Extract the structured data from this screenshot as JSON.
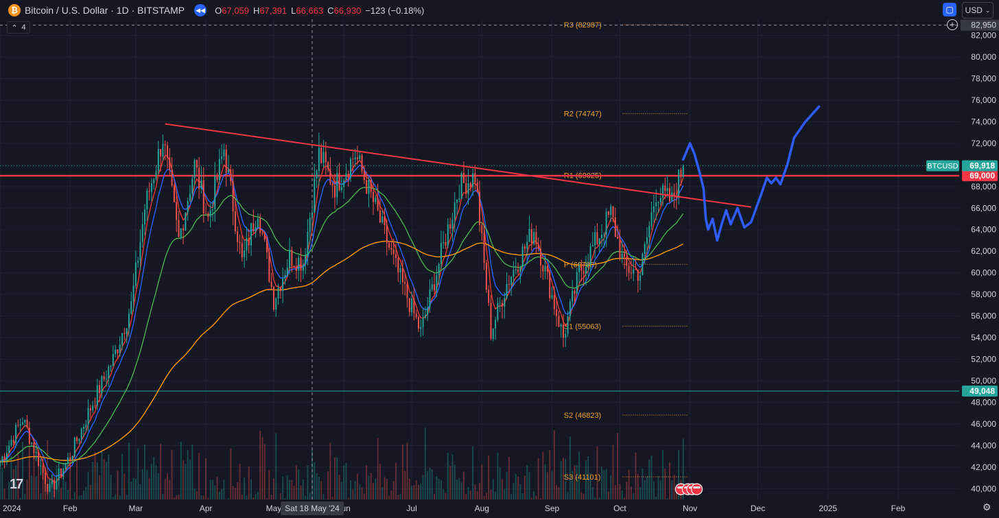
{
  "header": {
    "logo_glyph": "₿",
    "title": "Bitcoin / U.S. Dollar · 1D · BITSTAMP",
    "open_label": "O",
    "open": "67,059",
    "high_label": "H",
    "high": "67,391",
    "low_label": "L",
    "low": "66,663",
    "close_label": "C",
    "close": "66,930",
    "change": "−123 (−0.18%)",
    "currency": "USD",
    "indicator_count": "4"
  },
  "colors": {
    "background": "#151823",
    "up": "#26a69a",
    "down": "#ef5350",
    "resistance": "#f23645",
    "ema_fast": "#e53935",
    "ema_mid": "#2962ff",
    "sma_green": "#4caf50",
    "sma_orange": "#ff9800",
    "drawing": "#2f5bff",
    "pivot": "#f0a030"
  },
  "chart_data": {
    "type": "candlestick",
    "symbol": "BTCUSD",
    "interval": "1D",
    "ylim": [
      39000,
      83500
    ],
    "y_ticks": [
      40000,
      42000,
      44000,
      46000,
      48000,
      50000,
      52000,
      54000,
      56000,
      58000,
      60000,
      62000,
      64000,
      66000,
      68000,
      70000,
      72000,
      74000,
      76000,
      78000,
      80000,
      82000
    ],
    "y_tick_labels": [
      "40,000",
      "42,000",
      "44,000",
      "46,000",
      "48,000",
      "50,000",
      "52,000",
      "54,000",
      "56,000",
      "58,000",
      "60,000",
      "62,000",
      "64,000",
      "66,000",
      "68,000",
      "70,000",
      "72,000",
      "74,000",
      "76,000",
      "78,000",
      "80,000",
      "82,000"
    ],
    "x_axis_start": "2024-01-01",
    "x_axis_end": "2025-02-28",
    "x_tick_labels": [
      {
        "date": "2024-01-01",
        "label": "2024"
      },
      {
        "date": "2024-02-01",
        "label": "Feb"
      },
      {
        "date": "2024-03-01",
        "label": "Mar"
      },
      {
        "date": "2024-04-01",
        "label": "Apr"
      },
      {
        "date": "2024-05-01",
        "label": "May"
      },
      {
        "date": "2024-06-01",
        "label": "Jun"
      },
      {
        "date": "2024-07-01",
        "label": "Jul"
      },
      {
        "date": "2024-08-01",
        "label": "Aug"
      },
      {
        "date": "2024-09-01",
        "label": "Sep"
      },
      {
        "date": "2024-10-01",
        "label": "Oct"
      },
      {
        "date": "2024-11-01",
        "label": "Nov"
      },
      {
        "date": "2024-12-01",
        "label": "Dec"
      },
      {
        "date": "2025-01-01",
        "label": "2025"
      },
      {
        "date": "2025-02-01",
        "label": "Feb"
      }
    ],
    "crosshair": {
      "date": "2024-05-18",
      "label": "Sat 18 May '24",
      "price_label": "82,950",
      "price": 82950
    },
    "price_waypoints": [
      {
        "date": "2024-01-01",
        "price": 42500
      },
      {
        "date": "2024-01-11",
        "price": 46500
      },
      {
        "date": "2024-01-23",
        "price": 39800
      },
      {
        "date": "2024-02-01",
        "price": 43000
      },
      {
        "date": "2024-02-10",
        "price": 47500
      },
      {
        "date": "2024-02-20",
        "price": 52000
      },
      {
        "date": "2024-02-28",
        "price": 57000
      },
      {
        "date": "2024-03-05",
        "price": 66000
      },
      {
        "date": "2024-03-13",
        "price": 72500
      },
      {
        "date": "2024-03-20",
        "price": 63000
      },
      {
        "date": "2024-03-27",
        "price": 70000
      },
      {
        "date": "2024-04-02",
        "price": 65000
      },
      {
        "date": "2024-04-09",
        "price": 71500
      },
      {
        "date": "2024-04-17",
        "price": 61000
      },
      {
        "date": "2024-04-24",
        "price": 66000
      },
      {
        "date": "2024-05-01",
        "price": 57500
      },
      {
        "date": "2024-05-08",
        "price": 61500
      },
      {
        "date": "2024-05-14",
        "price": 61000
      },
      {
        "date": "2024-05-21",
        "price": 71000
      },
      {
        "date": "2024-05-28",
        "price": 68000
      },
      {
        "date": "2024-06-06",
        "price": 71000
      },
      {
        "date": "2024-06-15",
        "price": 66000
      },
      {
        "date": "2024-06-24",
        "price": 60500
      },
      {
        "date": "2024-07-05",
        "price": 54500
      },
      {
        "date": "2024-07-15",
        "price": 62500
      },
      {
        "date": "2024-07-22",
        "price": 68000
      },
      {
        "date": "2024-07-29",
        "price": 69000
      },
      {
        "date": "2024-08-05",
        "price": 54500
      },
      {
        "date": "2024-08-12",
        "price": 59000
      },
      {
        "date": "2024-08-24",
        "price": 64000
      },
      {
        "date": "2024-09-06",
        "price": 54000
      },
      {
        "date": "2024-09-13",
        "price": 60000
      },
      {
        "date": "2024-09-27",
        "price": 65500
      },
      {
        "date": "2024-10-03",
        "price": 60500
      },
      {
        "date": "2024-10-10",
        "price": 60000
      },
      {
        "date": "2024-10-17",
        "price": 67500
      },
      {
        "date": "2024-10-24",
        "price": 66600
      },
      {
        "date": "2024-10-29",
        "price": 69918
      }
    ],
    "volume_levels": {
      "base_axis": 39000,
      "max": 46000
    },
    "moving_averages": [
      {
        "key": "ema_fast",
        "color": "#e53935",
        "smoothing": 5
      },
      {
        "key": "ema_mid",
        "color": "#2962ff",
        "smoothing": 9
      },
      {
        "key": "sma_green",
        "color": "#4caf50",
        "smoothing": 30
      },
      {
        "key": "sma_orange",
        "color": "#ff9800",
        "smoothing": 120
      }
    ],
    "horizontal_lines": [
      {
        "price": 69000,
        "label": "69,000",
        "color": "#f23645"
      },
      {
        "price": 49048,
        "label": "49,048",
        "color": "#26a69a"
      }
    ],
    "last_price": {
      "symbol_label": "BTCUSD",
      "price": 69918,
      "label": "69,918",
      "color": "#26a69a"
    },
    "trendline": {
      "from": {
        "date": "2024-03-14",
        "price": 73800
      },
      "to": {
        "date": "2024-11-28",
        "price": 66100
      },
      "color": "#f23645"
    },
    "pivots": [
      {
        "name": "R3",
        "label": "R3 (82987)",
        "price": 82987
      },
      {
        "name": "R2",
        "label": "R2 (74747)",
        "price": 74747
      },
      {
        "name": "R1",
        "label": "R1 (69025)",
        "price": 69025
      },
      {
        "name": "P",
        "label": "P (60785)",
        "price": 60785
      },
      {
        "name": "S1",
        "label": "S1 (55063)",
        "price": 55063
      },
      {
        "name": "S2",
        "label": "S2 (46823)",
        "price": 46823
      },
      {
        "name": "S3",
        "label": "S3 (41101)",
        "price": 41101
      }
    ],
    "pivot_line_span": [
      "2024-10-01",
      "2024-10-31"
    ],
    "forecast_drawing": [
      {
        "date": "2024-10-29",
        "price": 70500
      },
      {
        "date": "2024-11-01",
        "price": 72000
      },
      {
        "date": "2024-11-03",
        "price": 71000
      },
      {
        "date": "2024-11-05",
        "price": 69500
      },
      {
        "date": "2024-11-07",
        "price": 67800
      },
      {
        "date": "2024-11-08",
        "price": 65000
      },
      {
        "date": "2024-11-09",
        "price": 64000
      },
      {
        "date": "2024-11-11",
        "price": 65000
      },
      {
        "date": "2024-11-13",
        "price": 63000
      },
      {
        "date": "2024-11-15",
        "price": 64500
      },
      {
        "date": "2024-11-17",
        "price": 65800
      },
      {
        "date": "2024-11-19",
        "price": 64500
      },
      {
        "date": "2024-11-22",
        "price": 66000
      },
      {
        "date": "2024-11-25",
        "price": 64200
      },
      {
        "date": "2024-11-28",
        "price": 64700
      },
      {
        "date": "2024-12-02",
        "price": 67000
      },
      {
        "date": "2024-12-05",
        "price": 68800
      },
      {
        "date": "2024-12-07",
        "price": 68300
      },
      {
        "date": "2024-12-09",
        "price": 68800
      },
      {
        "date": "2024-12-11",
        "price": 68200
      },
      {
        "date": "2024-12-14",
        "price": 70000
      },
      {
        "date": "2024-12-17",
        "price": 72500
      },
      {
        "date": "2024-12-22",
        "price": 74000
      },
      {
        "date": "2024-12-28",
        "price": 75400
      }
    ]
  }
}
